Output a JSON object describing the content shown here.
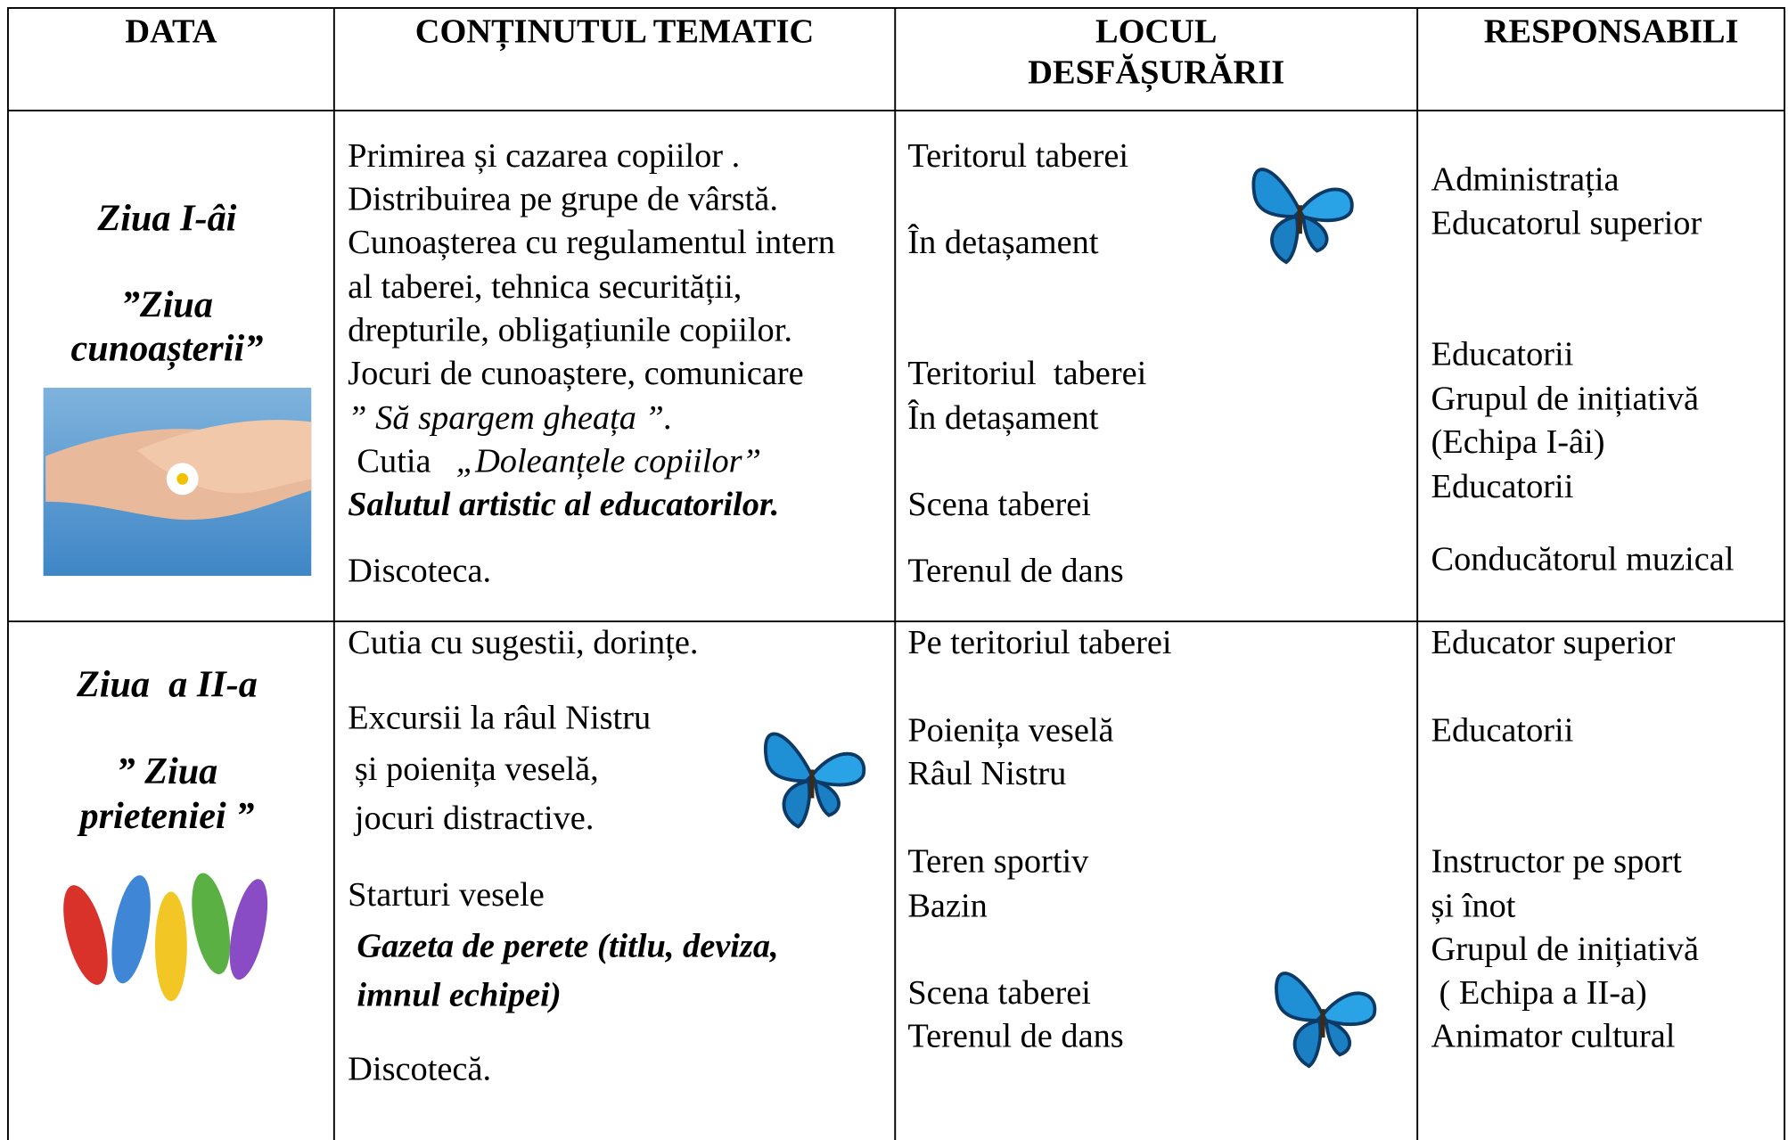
{
  "table": {
    "headers": [
      "DATA",
      "CONȚINUTUL TEMATIC",
      "LOCUL DESFĂȘURĂRII",
      "RESPONSABILI"
    ],
    "rows": [
      {
        "day": [
          "Ziua I-âi",
          "”Ziua",
          "cunoașterii”"
        ],
        "content": [
          "Primirea și cazarea copiilor .",
          "Distribuirea pe grupe de vârstă.",
          "Cunoașterea cu regulamentul intern",
          "al taberei, tehnica securității,",
          "drepturile, obligațiunile copiilor.",
          "Jocuri de cunoaștere, comunicare",
          "” Să spargem gheața ”.",
          "Cutia",
          "„Doleanțele copiilor”",
          "Salutul artistic al educatorilor.",
          "Discoteca."
        ],
        "places": [
          "Teritorul taberei",
          "În detașament",
          "Teritoriul  taberei",
          "În detașament",
          "Scena taberei",
          "Terenul de dans"
        ],
        "responsible": [
          "Administrația",
          "Educatorul superior",
          "Educatorii",
          "Grupul de inițiativă",
          "(Echipa I-âi)",
          "Educatorii",
          "Conducătorul muzical"
        ]
      },
      {
        "day": [
          "Ziua  a II-a",
          "” Ziua",
          "prieteniei ”"
        ],
        "content": [
          "Cutia cu sugestii, dorințe.",
          "Excursii la râul Nistru",
          "și poienița veselă,",
          "jocuri distractive.",
          "Starturi vesele",
          "Gazeta de perete (titlu, deviza,",
          "imnul echipei)",
          "Discotecă."
        ],
        "places": [
          "Pe teritoriul taberei",
          "Poienița veselă",
          "Râul Nistru",
          "Teren sportiv",
          "Bazin",
          "Scena taberei",
          "Terenul de dans"
        ],
        "responsible": [
          "Educator superior",
          "Educatorii",
          "Instructor pe sport",
          "și înot",
          "Grupul de inițiativă",
          "( Echipa a II-a)",
          "Animator cultural"
        ]
      }
    ]
  }
}
